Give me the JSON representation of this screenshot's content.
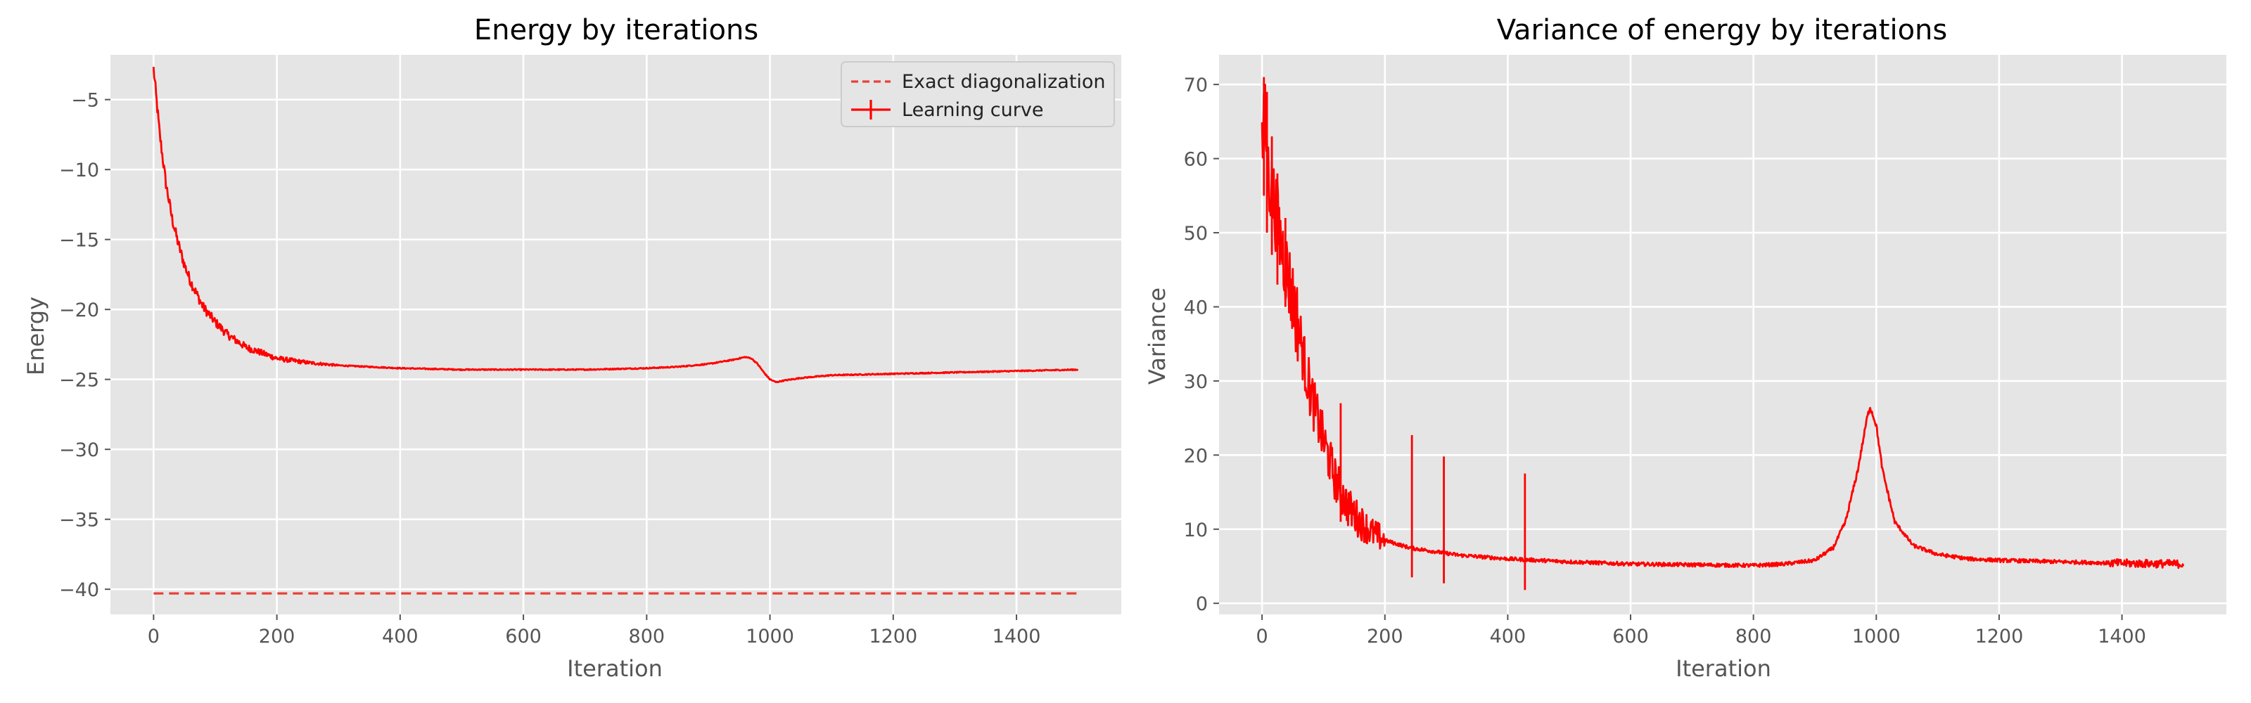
{
  "chart_data": [
    {
      "type": "line",
      "title": "Energy by iterations",
      "xlabel": "Iteration",
      "ylabel": "Energy",
      "xlim": [
        -70,
        1570
      ],
      "ylim": [
        -41.8,
        -1.8
      ],
      "xticks": [
        0,
        200,
        400,
        600,
        800,
        1000,
        1200,
        1400
      ],
      "xtick_labels": [
        "0",
        "200",
        "400",
        "600",
        "800",
        "1000",
        "1200",
        "1400"
      ],
      "yticks": [
        -5,
        -10,
        -15,
        -20,
        -25,
        -30,
        -35,
        -40
      ],
      "ytick_labels": [
        "−5",
        "−10",
        "−15",
        "−20",
        "−25",
        "−30",
        "−35",
        "−40"
      ],
      "grid": true,
      "legend": "top-right",
      "series": [
        {
          "name": "Exact diagonalization",
          "style": "dashed",
          "color": "#e8413a",
          "x": [
            0,
            1500
          ],
          "y": [
            -40.3,
            -40.3
          ]
        },
        {
          "name": "Learning curve",
          "style": "solid-errorbar",
          "color": "#ff0000",
          "x": [
            0,
            10,
            20,
            30,
            40,
            50,
            60,
            80,
            100,
            120,
            150,
            200,
            250,
            300,
            400,
            500,
            600,
            700,
            800,
            850,
            900,
            940,
            960,
            970,
            980,
            990,
            1000,
            1010,
            1020,
            1050,
            1100,
            1200,
            1300,
            1400,
            1500
          ],
          "y": [
            -2.8,
            -7.5,
            -11.0,
            -13.5,
            -15.3,
            -16.8,
            -18.0,
            -19.8,
            -20.9,
            -21.8,
            -22.7,
            -23.5,
            -23.8,
            -24.0,
            -24.2,
            -24.3,
            -24.3,
            -24.3,
            -24.2,
            -24.1,
            -23.9,
            -23.6,
            -23.4,
            -23.5,
            -23.9,
            -24.5,
            -25.0,
            -25.2,
            -25.1,
            -24.9,
            -24.7,
            -24.6,
            -24.5,
            -24.4,
            -24.3
          ]
        }
      ]
    },
    {
      "type": "line",
      "title": "Variance of energy by iterations",
      "xlabel": "Iteration",
      "ylabel": "Variance",
      "xlim": [
        -70,
        1570
      ],
      "ylim": [
        -1.5,
        74
      ],
      "xticks": [
        0,
        200,
        400,
        600,
        800,
        1000,
        1200,
        1400
      ],
      "xtick_labels": [
        "0",
        "200",
        "400",
        "600",
        "800",
        "1000",
        "1200",
        "1400"
      ],
      "yticks": [
        0,
        10,
        20,
        30,
        40,
        50,
        60,
        70
      ],
      "ytick_labels": [
        "0",
        "10",
        "20",
        "30",
        "40",
        "50",
        "60",
        "70"
      ],
      "grid": true,
      "series": [
        {
          "color": "#ff0000",
          "x": [
            0,
            5,
            10,
            20,
            30,
            40,
            50,
            60,
            70,
            80,
            100,
            120,
            140,
            160,
            180,
            200,
            240,
            280,
            320,
            400,
            500,
            600,
            700,
            800,
            850,
            900,
            930,
            950,
            970,
            985,
            990,
            1000,
            1010,
            1030,
            1060,
            1100,
            1150,
            1200,
            1300,
            1400,
            1500
          ],
          "y": [
            62,
            65,
            58,
            54,
            49,
            45,
            41,
            37,
            32,
            28,
            22,
            16.5,
            13,
            11,
            9.5,
            8.5,
            7.5,
            7.0,
            6.5,
            6.0,
            5.6,
            5.3,
            5.2,
            5.1,
            5.3,
            5.8,
            7.5,
            11,
            18,
            25,
            26.5,
            24,
            18,
            11,
            7.8,
            6.6,
            6.0,
            5.8,
            5.6,
            5.4,
            5.3
          ]
        }
      ],
      "spikes": [
        {
          "x": 3,
          "y_low": 55,
          "y_high": 71
        },
        {
          "x": 8,
          "y_low": 50,
          "y_high": 69
        },
        {
          "x": 16,
          "y_low": 47,
          "y_high": 63
        },
        {
          "x": 25,
          "y_low": 43,
          "y_high": 58
        },
        {
          "x": 38,
          "y_low": 40,
          "y_high": 52
        },
        {
          "x": 128,
          "y_low": 11,
          "y_high": 27
        },
        {
          "x": 244,
          "y_low": 3.5,
          "y_high": 22.7
        },
        {
          "x": 296,
          "y_low": 2.7,
          "y_high": 19.8
        },
        {
          "x": 428,
          "y_low": 1.8,
          "y_high": 17.5
        }
      ]
    }
  ]
}
